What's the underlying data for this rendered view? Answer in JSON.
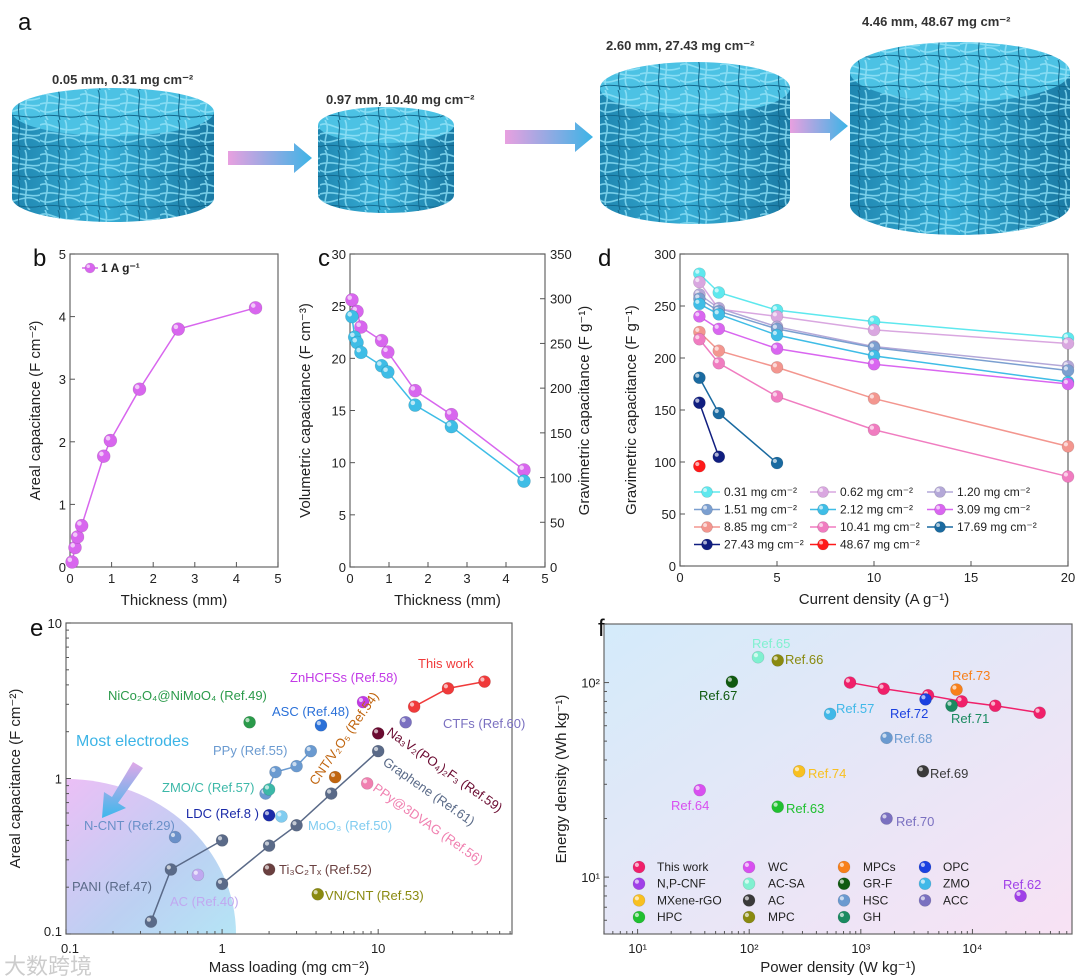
{
  "panel_a": {
    "label": "a",
    "samples": [
      {
        "text": "0.05 mm, 0.31 mg cm⁻²"
      },
      {
        "text": "0.97 mm, 10.40 mg cm⁻²"
      },
      {
        "text": "2.60 mm, 27.43 mg cm⁻²"
      },
      {
        "text": "4.46 mm, 48.67 mg cm⁻²"
      }
    ]
  },
  "watermark": "大数跨境",
  "chart_data": [
    {
      "id": "b",
      "panel_label": "b",
      "type": "line",
      "xlabel": "Thickness (mm)",
      "ylabel": "Areal capacitance (F cm⁻²)",
      "xscale": "linear",
      "yscale": "linear",
      "xlim": [
        0,
        5
      ],
      "ylim": [
        0,
        5
      ],
      "xticks": [
        0,
        1,
        2,
        3,
        4,
        5
      ],
      "xtick_labels": [
        "0",
        "1",
        "2",
        "3",
        "4",
        "5"
      ],
      "yticks": [
        0,
        1,
        2,
        3,
        4,
        5
      ],
      "ytick_labels": [
        "0",
        "1",
        "2",
        "3",
        "4",
        "5"
      ],
      "legend": [
        {
          "name": "1 A g⁻¹",
          "color": "#d866ee"
        }
      ],
      "series": [
        {
          "name": "1 A g⁻¹",
          "color": "#d866ee",
          "line": true,
          "x": [
            0.05,
            0.12,
            0.18,
            0.28,
            0.81,
            0.97,
            1.67,
            2.6,
            4.46
          ],
          "y": [
            0.08,
            0.31,
            0.48,
            0.66,
            1.77,
            2.02,
            2.84,
            3.8,
            4.14
          ]
        }
      ]
    },
    {
      "id": "c",
      "panel_label": "c",
      "type": "line",
      "xlabel": "Thickness (mm)",
      "ylabel": "Volumetric capacitance (F cm⁻³)",
      "ylabel_right": "Gravimetric capacitance (F g⁻¹)",
      "left_color": "#d060e0",
      "right_color": "#3ebde6",
      "xscale": "linear",
      "yscale": "linear",
      "xlim": [
        0,
        5
      ],
      "ylim": [
        0,
        30
      ],
      "ylim_right": [
        0,
        350
      ],
      "xticks": [
        0,
        1,
        2,
        3,
        4,
        5
      ],
      "xtick_labels": [
        "0",
        "1",
        "2",
        "3",
        "4",
        "5"
      ],
      "yticks": [
        0,
        5,
        10,
        15,
        20,
        25,
        30
      ],
      "ytick_labels": [
        "0",
        "5",
        "10",
        "15",
        "20",
        "25",
        "30"
      ],
      "yticks_right": [
        0,
        50,
        100,
        150,
        200,
        250,
        300,
        350
      ],
      "ytick_labels_right": [
        "0",
        "50",
        "100",
        "150",
        "200",
        "250",
        "300",
        "350"
      ],
      "series": [
        {
          "name": "Volumetric",
          "color": "#d866ee",
          "line": true,
          "axis": "left",
          "x": [
            0.05,
            0.18,
            0.28,
            0.81,
            0.97,
            1.67,
            2.6,
            4.46
          ],
          "y": [
            25.6,
            24.5,
            23.0,
            21.7,
            20.6,
            16.9,
            14.6,
            9.3
          ]
        },
        {
          "name": "Gravimetric",
          "color": "#3ebde6",
          "line": true,
          "axis": "right",
          "x": [
            0.05,
            0.12,
            0.18,
            0.28,
            0.81,
            0.97,
            1.67,
            2.6,
            4.46
          ],
          "y": [
            280,
            257,
            251,
            240,
            225,
            218,
            181,
            157,
            96
          ]
        }
      ]
    },
    {
      "id": "d",
      "panel_label": "d",
      "type": "line",
      "xlabel": "Current density (A g⁻¹)",
      "ylabel": "Gravimetric capacitance (F g⁻¹)",
      "xscale": "linear",
      "yscale": "linear",
      "xlim": [
        0,
        20
      ],
      "ylim": [
        0,
        300
      ],
      "xticks": [
        0,
        5,
        10,
        15,
        20
      ],
      "xtick_labels": [
        "0",
        "5",
        "10",
        "15",
        "20"
      ],
      "yticks": [
        0,
        50,
        100,
        150,
        200,
        250,
        300
      ],
      "ytick_labels": [
        "0",
        "50",
        "100",
        "150",
        "200",
        "250",
        "300"
      ],
      "series": [
        {
          "name": "0.31 mg cm⁻²",
          "color": "#5ee8ee",
          "line": true,
          "x": [
            1,
            2,
            5,
            10,
            20
          ],
          "y": [
            281,
            263,
            246,
            235,
            219
          ]
        },
        {
          "name": "0.62 mg cm⁻²",
          "color": "#d9a7e0",
          "line": true,
          "x": [
            1,
            2,
            5,
            10,
            20
          ],
          "y": [
            273,
            247,
            240,
            227,
            214
          ]
        },
        {
          "name": "1.20 mg cm⁻²",
          "color": "#b4a8d8",
          "line": true,
          "x": [
            1,
            2,
            5,
            10,
            20
          ],
          "y": [
            261,
            248,
            230,
            211,
            192
          ]
        },
        {
          "name": "1.51 mg cm⁻²",
          "color": "#7b9fd0",
          "line": true,
          "x": [
            1,
            2,
            5,
            10,
            20
          ],
          "y": [
            257,
            245,
            228,
            210,
            188
          ]
        },
        {
          "name": "2.12 mg cm⁻²",
          "color": "#3fbde6",
          "line": true,
          "x": [
            1,
            2,
            5,
            10,
            20
          ],
          "y": [
            252,
            242,
            222,
            202,
            177
          ]
        },
        {
          "name": "3.09 mg cm⁻²",
          "color": "#d966f0",
          "line": true,
          "x": [
            1,
            2,
            5,
            10,
            20
          ],
          "y": [
            240,
            228,
            209,
            194,
            175
          ]
        },
        {
          "name": "8.85 mg cm⁻²",
          "color": "#f3968f",
          "line": true,
          "x": [
            1,
            2,
            5,
            10,
            20
          ],
          "y": [
            225,
            207,
            191,
            161,
            115
          ]
        },
        {
          "name": "10.41 mg cm⁻²",
          "color": "#f07cc0",
          "line": true,
          "x": [
            1,
            2,
            5,
            10,
            20
          ],
          "y": [
            218,
            195,
            163,
            131,
            86
          ]
        },
        {
          "name": "17.69 mg cm⁻²",
          "color": "#1a6aa0",
          "line": true,
          "x": [
            1,
            2,
            5
          ],
          "y": [
            181,
            147,
            99
          ]
        },
        {
          "name": "27.43 mg cm⁻²",
          "color": "#101e80",
          "line": true,
          "x": [
            1,
            2
          ],
          "y": [
            157,
            105
          ]
        },
        {
          "name": "48.67 mg cm⁻²",
          "color": "#ff1a1a",
          "line": true,
          "x": [
            1
          ],
          "y": [
            96
          ]
        }
      ]
    },
    {
      "id": "e",
      "panel_label": "e",
      "type": "scatter",
      "xlabel": "Mass loading (mg cm⁻²)",
      "ylabel": "Areal capacitance (F cm⁻²)",
      "xscale": "log",
      "yscale": "log",
      "xlim": [
        0.1,
        72
      ],
      "ylim": [
        0.1,
        10
      ],
      "xticks": [
        0.1,
        1,
        10
      ],
      "xtick_labels": [
        "0.1",
        "1",
        "10"
      ],
      "yticks": [
        0.1,
        1,
        10
      ],
      "ytick_labels": [
        "0.1",
        "1",
        "10"
      ],
      "annotations": [
        {
          "text": "Most electrodes",
          "color": "#3cb4e6"
        }
      ],
      "series": [
        {
          "name": "This work",
          "label": "This work",
          "color": "#f03a3a",
          "line": true,
          "x": [
            17,
            28,
            48
          ],
          "y": [
            2.9,
            3.8,
            4.2
          ]
        },
        {
          "name": "ZnHCFSs (Ref.58)",
          "label": "ZnHCFSs (Ref.58)",
          "color": "#c23ae6",
          "x": [
            8
          ],
          "y": [
            3.1
          ]
        },
        {
          "name": "NiCo₂O₄@NiMoO₄ (Ref.49)",
          "label": "NiCo₂O₄@NiMoO₄ (Ref.49)",
          "color": "#2a9a4a",
          "x": [
            1.5
          ],
          "y": [
            2.3
          ]
        },
        {
          "name": "ASC (Ref.48)",
          "label": "ASC (Ref.48)",
          "color": "#2a70d8",
          "x": [
            4.3
          ],
          "y": [
            2.2
          ]
        },
        {
          "name": "CTFs (Ref.60)",
          "label": "CTFs (Ref.60)",
          "color": "#7a70c0",
          "x": [
            15
          ],
          "y": [
            2.3
          ]
        },
        {
          "name": "Na₃V₂(PO₄)₂F₃ (Ref.59)",
          "label": "Na₃V₂(PO₄)₂F₃ (Ref.59)",
          "color": "#6a0a30",
          "x": [
            10
          ],
          "y": [
            1.95
          ]
        },
        {
          "name": "CNT/V₂O₅ (Ref.54)",
          "label": "CNT/V₂O₅ (Ref.54)",
          "color": "#c0650f",
          "x": [
            5.3
          ],
          "y": [
            1.02
          ]
        },
        {
          "name": "PPy (Ref.55)",
          "label": "PPy (Ref.55)",
          "color": "#6a9ad0",
          "line": true,
          "x": [
            1.9,
            2.2,
            3,
            3.7
          ],
          "y": [
            0.8,
            1.1,
            1.2,
            1.5
          ]
        },
        {
          "name": "ZMO/C (Ref.57)",
          "label": "ZMO/C (Ref.57)",
          "color": "#3cb8a8",
          "x": [
            2
          ],
          "y": [
            0.85
          ]
        },
        {
          "name": "LDC (Ref.8 )",
          "label": "LDC (Ref.8 )",
          "color": "#1a2aa8",
          "x": [
            2
          ],
          "y": [
            0.58
          ]
        },
        {
          "name": "MoO₃ (Ref.50)",
          "label": "MoO₃ (Ref.50)",
          "color": "#80ccf0",
          "x": [
            2.4
          ],
          "y": [
            0.57
          ]
        },
        {
          "name": "Graphene (Ref.61)",
          "label": "Graphene (Ref.61)",
          "color": "#5a6a88",
          "line": true,
          "x": [
            1,
            2,
            3,
            5,
            10
          ],
          "y": [
            0.21,
            0.37,
            0.5,
            0.8,
            1.5
          ]
        },
        {
          "name": "PPy@3DVAG (Ref.56)",
          "label": "PPy@3DVAG (Ref.56)",
          "color": "#f080b0",
          "x": [
            8.5
          ],
          "y": [
            0.93
          ]
        },
        {
          "name": "N-CNT (Ref.29)",
          "label": "N-CNT (Ref.29)",
          "color": "#6a90c8",
          "x": [
            0.5
          ],
          "y": [
            0.42
          ]
        },
        {
          "name": "PANI (Ref.47)",
          "label": "PANI (Ref.47)",
          "color": "#5a6a88",
          "line": true,
          "x": [
            0.35,
            0.47,
            1
          ],
          "y": [
            0.12,
            0.26,
            0.4
          ]
        },
        {
          "name": "AC (Ref.40)",
          "label": "AC (Ref.40)",
          "color": "#c0a8f0",
          "x": [
            0.7
          ],
          "y": [
            0.24
          ]
        },
        {
          "name": "Ti₃C₂Tₓ (Ref.52)",
          "label": "Ti₃C₂Tₓ (Ref.52)",
          "color": "#6a4040",
          "x": [
            2
          ],
          "y": [
            0.26
          ]
        },
        {
          "name": "VN/CNT (Ref.53)",
          "label": "VN/CNT (Ref.53)",
          "color": "#8a8a10",
          "x": [
            4.1
          ],
          "y": [
            0.18
          ]
        }
      ]
    },
    {
      "id": "f",
      "panel_label": "f",
      "type": "scatter",
      "xlabel": "Power density (W kg⁻¹)",
      "ylabel": "Energy density (Wh kg⁻¹)",
      "xscale": "log",
      "yscale": "log",
      "xlim": [
        5,
        78000
      ],
      "ylim": [
        5.1,
        200
      ],
      "xticks": [
        10,
        100,
        1000,
        10000
      ],
      "xtick_labels": [
        "10¹",
        "10²",
        "10³",
        "10⁴"
      ],
      "yticks": [
        10,
        100
      ],
      "ytick_labels": [
        "10¹",
        "10²"
      ],
      "legend": [
        {
          "name": "This work",
          "color": "#f0206a"
        },
        {
          "name": "N,P-CNF",
          "color": "#a040e8"
        },
        {
          "name": "MXene-rGO",
          "color": "#f8c020"
        },
        {
          "name": "HPC",
          "color": "#20c030"
        },
        {
          "name": "WC",
          "color": "#d850f0"
        },
        {
          "name": "AC-SA",
          "color": "#80f0d0"
        },
        {
          "name": "AC",
          "color": "#3a3a3a"
        },
        {
          "name": "MPC",
          "color": "#8a8a10"
        },
        {
          "name": "MPCs",
          "color": "#f8801a"
        },
        {
          "name": "GR-F",
          "color": "#105a10"
        },
        {
          "name": "HSC",
          "color": "#6a9ad0"
        },
        {
          "name": "GH",
          "color": "#1a8a60"
        },
        {
          "name": "OPC",
          "color": "#1a40e0"
        },
        {
          "name": "ZMO",
          "color": "#40b8e8"
        },
        {
          "name": "ACC",
          "color": "#7a70c0"
        }
      ],
      "series": [
        {
          "name": "This work",
          "label": "",
          "color": "#f0206a",
          "line": true,
          "x": [
            800,
            1600,
            4000,
            8000,
            16000,
            40000
          ],
          "y": [
            100,
            93,
            86,
            80,
            76,
            70
          ]
        },
        {
          "name": "AC-SA",
          "label": "Ref.65",
          "color": "#80f0d0",
          "x": [
            120
          ],
          "y": [
            135
          ]
        },
        {
          "name": "MPC",
          "label": "Ref.66",
          "color": "#8a8a10",
          "x": [
            180
          ],
          "y": [
            130
          ]
        },
        {
          "name": "GR-F",
          "label": "Ref.67",
          "color": "#105a10",
          "x": [
            70
          ],
          "y": [
            101
          ]
        },
        {
          "name": "MPCs",
          "label": "Ref.73",
          "color": "#f8801a",
          "x": [
            7200
          ],
          "y": [
            92
          ]
        },
        {
          "name": "OPC",
          "label": "Ref.72",
          "color": "#1a40e0",
          "x": [
            3800
          ],
          "y": [
            82
          ]
        },
        {
          "name": "GH",
          "label": "Ref.71",
          "color": "#1a8a60",
          "x": [
            6500
          ],
          "y": [
            76
          ]
        },
        {
          "name": "ZMO",
          "label": "Ref.57",
          "color": "#40b8e8",
          "x": [
            530
          ],
          "y": [
            69
          ]
        },
        {
          "name": "HSC",
          "label": "Ref.68",
          "color": "#6a9ad0",
          "x": [
            1700
          ],
          "y": [
            52
          ]
        },
        {
          "name": "MXene-rGO",
          "label": "Ref.74",
          "color": "#f8c020",
          "x": [
            280
          ],
          "y": [
            35
          ]
        },
        {
          "name": "AC",
          "label": "Ref.69",
          "color": "#3a3a3a",
          "x": [
            3600
          ],
          "y": [
            35
          ]
        },
        {
          "name": "WC",
          "label": "Ref.64",
          "color": "#d850f0",
          "x": [
            36
          ],
          "y": [
            28
          ]
        },
        {
          "name": "HPC",
          "label": "Ref.63",
          "color": "#20c030",
          "x": [
            180
          ],
          "y": [
            23
          ]
        },
        {
          "name": "ACC",
          "label": "Ref.70",
          "color": "#7a70c0",
          "x": [
            1700
          ],
          "y": [
            20
          ]
        },
        {
          "name": "N,P-CNF",
          "label": "Ref.62",
          "color": "#a040e8",
          "x": [
            27000
          ],
          "y": [
            8
          ]
        }
      ]
    }
  ]
}
